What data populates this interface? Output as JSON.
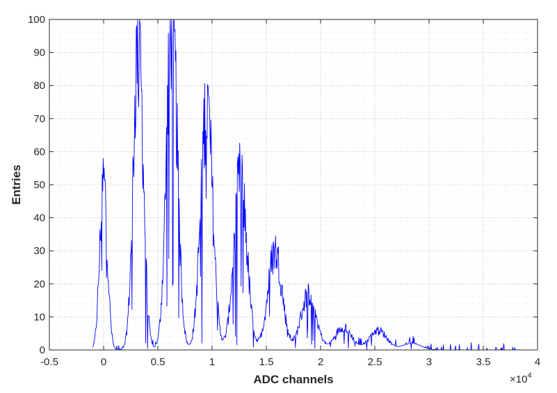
{
  "chart_data": {
    "type": "line",
    "title": "",
    "xlabel": "ADC channels",
    "ylabel": "Entries",
    "x_scale_label": {
      "base": "×10",
      "exponent": "4"
    },
    "xlim": [
      -0.5,
      4
    ],
    "ylim": [
      0,
      100
    ],
    "xticks": [
      "-0.5",
      "0",
      "0.5",
      "1",
      "1.5",
      "2",
      "2.5",
      "3",
      "3.5",
      "4"
    ],
    "yticks": [
      "0",
      "10",
      "20",
      "30",
      "40",
      "50",
      "60",
      "70",
      "80",
      "90",
      "100"
    ],
    "grid": "major and minor, dotted",
    "series": [
      {
        "color": "#0000ff",
        "peaks": [
          {
            "x": 0.0,
            "height": 51,
            "width": 0.035
          },
          {
            "x": 0.32,
            "height": 95,
            "width": 0.045
          },
          {
            "x": 0.63,
            "height": 100,
            "width": 0.05
          },
          {
            "x": 0.95,
            "height": 74,
            "width": 0.055
          },
          {
            "x": 1.26,
            "height": 52,
            "width": 0.06
          },
          {
            "x": 1.58,
            "height": 30,
            "width": 0.065
          },
          {
            "x": 1.89,
            "height": 17,
            "width": 0.07
          },
          {
            "x": 2.21,
            "height": 7,
            "width": 0.075
          },
          {
            "x": 2.53,
            "height": 6,
            "width": 0.08
          },
          {
            "x": 2.84,
            "height": 2,
            "width": 0.085
          }
        ],
        "x_start": -0.1,
        "x_end": 3.82
      }
    ]
  }
}
